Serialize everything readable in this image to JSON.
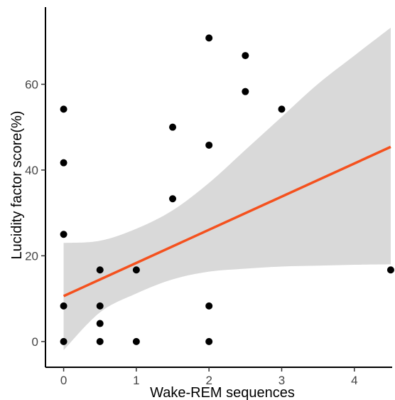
{
  "chart_data": {
    "type": "scatter",
    "title": "",
    "xlabel": "Wake-REM sequences",
    "ylabel": "Lucidity factor score(%)",
    "xlim": [
      -0.25,
      4.52
    ],
    "ylim": [
      -6,
      78
    ],
    "xticks": [
      0,
      1,
      2,
      3,
      4
    ],
    "yticks": [
      0,
      20,
      40,
      60
    ],
    "grid": false,
    "legend": "none",
    "colors": {
      "points": "#000000",
      "fit_line": "#f4511e",
      "confidence_band": "#d9d9d9"
    },
    "points": [
      {
        "x": 0,
        "y": 54.2
      },
      {
        "x": 0,
        "y": 41.7
      },
      {
        "x": 0,
        "y": 25.0
      },
      {
        "x": 0,
        "y": 8.3
      },
      {
        "x": 0,
        "y": 0
      },
      {
        "x": 0.5,
        "y": 16.7
      },
      {
        "x": 0.5,
        "y": 8.3
      },
      {
        "x": 0.5,
        "y": 4.2
      },
      {
        "x": 0.5,
        "y": 0
      },
      {
        "x": 1,
        "y": 16.7
      },
      {
        "x": 1,
        "y": 0
      },
      {
        "x": 1.5,
        "y": 50.0
      },
      {
        "x": 1.5,
        "y": 33.3
      },
      {
        "x": 2,
        "y": 70.8
      },
      {
        "x": 2,
        "y": 45.8
      },
      {
        "x": 2,
        "y": 8.3
      },
      {
        "x": 2,
        "y": 0
      },
      {
        "x": 2.5,
        "y": 66.7
      },
      {
        "x": 2.5,
        "y": 58.3
      },
      {
        "x": 3,
        "y": 54.2
      },
      {
        "x": 4.5,
        "y": 16.7
      }
    ],
    "fit": {
      "x": [
        0,
        4.5
      ],
      "y": [
        10.6,
        45.4
      ]
    },
    "confidence_band": {
      "x": [
        0,
        0.5,
        1,
        1.5,
        2,
        2.5,
        3,
        3.5,
        4,
        4.5
      ],
      "upper": [
        23.0,
        23.5,
        26.3,
        30.6,
        37.0,
        44.7,
        52.4,
        60.1,
        66.7,
        73.2
      ],
      "lower": [
        -2.0,
        6.8,
        11.2,
        14.5,
        16.3,
        17.0,
        17.5,
        17.7,
        17.9,
        18.0
      ]
    }
  }
}
